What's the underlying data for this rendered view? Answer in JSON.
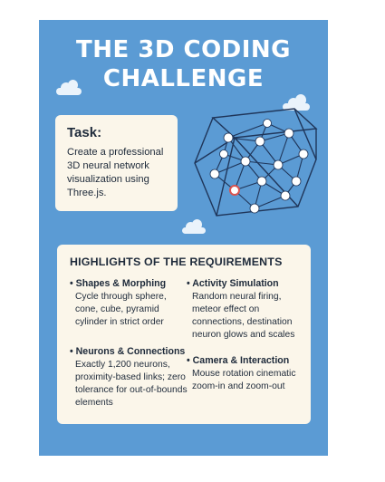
{
  "title": {
    "line1": "THE 3D CODING",
    "line2": "CHALLENGE"
  },
  "task": {
    "heading": "Task:",
    "body": "Create a professional 3D neural network visualization using Three.js."
  },
  "illustration": {
    "icon": "neural-network-cube-icon",
    "colors": {
      "lines": "#1f3559",
      "nodes": "#ffffff",
      "highlight": "#d9534f"
    }
  },
  "requirements": {
    "heading": "HIGHLIGHTS OF THE REQUIREMENTS",
    "items": [
      {
        "title": "Shapes & Morphing",
        "desc": "Cycle through sphere, cone, cube, pyramid cylinder in strict order"
      },
      {
        "title": "Activity Simulation",
        "desc": "Random neural firing, meteor effect on connections, destination neuron glows and scales"
      },
      {
        "title": "Neurons & Connections",
        "desc": "Exactly 1,200 neurons, proximity-based links; zero tolerance for out-of-bounds elements"
      },
      {
        "title": "Camera & Interaction",
        "desc": "Mouse rotation cinematic zoom-in and zoom-out"
      }
    ]
  },
  "colors": {
    "background": "#5b9bd4",
    "card": "#fbf6ea",
    "text": "#1e2a3a",
    "title": "#ffffff"
  }
}
